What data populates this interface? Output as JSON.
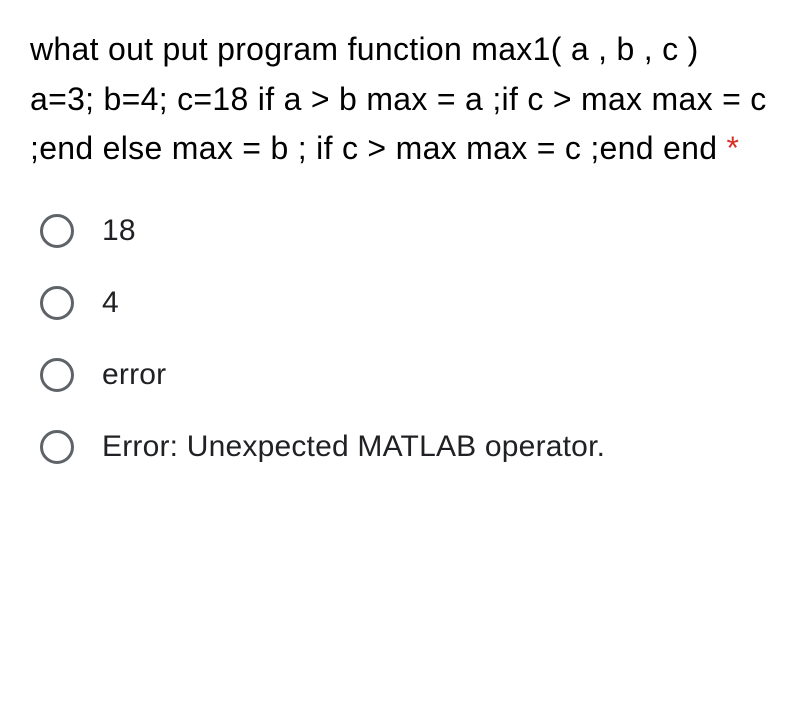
{
  "question": {
    "text": "what out put program function max1( a , b , c ) a=3; b=4; c=18 if a > b max = a ;if c > max max = c ;end else max = b ; if c > max max = c ;end end",
    "required_marker": "*",
    "required_color": "#d93025",
    "text_color": "#000000",
    "font_size": 32
  },
  "options": [
    {
      "label": "18",
      "selected": false
    },
    {
      "label": "4",
      "selected": false
    },
    {
      "label": "error",
      "selected": false
    },
    {
      "label": "Error: Unexpected MATLAB operator.",
      "selected": false
    }
  ],
  "styling": {
    "background_color": "#ffffff",
    "radio_border_color": "#5f6368",
    "radio_size": 34,
    "option_font_size": 30,
    "option_text_color": "#202124"
  }
}
